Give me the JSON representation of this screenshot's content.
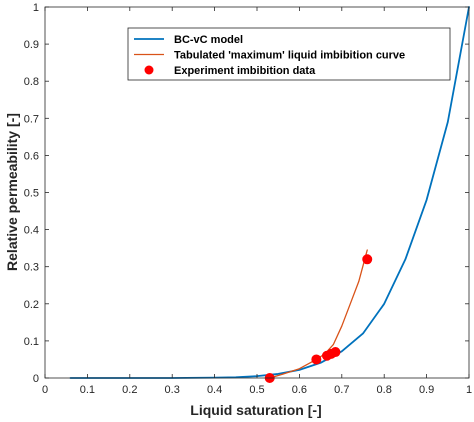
{
  "chart_data": {
    "type": "line",
    "xlabel": "Liquid saturation [-]",
    "ylabel": "Relative permeability [-]",
    "xlim": [
      0,
      1
    ],
    "ylim": [
      0,
      1
    ],
    "xticks": [
      0,
      0.1,
      0.2,
      0.3,
      0.4,
      0.5,
      0.6,
      0.7,
      0.8,
      0.9,
      1
    ],
    "yticks": [
      0,
      0.1,
      0.2,
      0.3,
      0.4,
      0.5,
      0.6,
      0.7,
      0.8,
      0.9,
      1
    ],
    "xtick_labels": [
      "0",
      "0.1",
      "0.2",
      "0.3",
      "0.4",
      "0.5",
      "0.6",
      "0.7",
      "0.8",
      "0.9",
      "1"
    ],
    "ytick_labels": [
      "0",
      "0.1",
      "0.2",
      "0.3",
      "0.4",
      "0.5",
      "0.6",
      "0.7",
      "0.8",
      "0.9",
      "1"
    ],
    "grid": false,
    "legend_position": "top-center",
    "series": [
      {
        "name": "BC-vC model",
        "kind": "line",
        "color": "#0072BD",
        "x": [
          0.06,
          0.1,
          0.2,
          0.3,
          0.4,
          0.45,
          0.5,
          0.55,
          0.6,
          0.65,
          0.7,
          0.75,
          0.8,
          0.85,
          0.9,
          0.95,
          1.0
        ],
        "y": [
          0.0,
          0.0,
          0.0,
          0.0,
          0.001,
          0.002,
          0.005,
          0.011,
          0.022,
          0.041,
          0.072,
          0.12,
          0.2,
          0.32,
          0.48,
          0.69,
          1.0
        ]
      },
      {
        "name": "Tabulated 'maximum' liquid imbibition curve",
        "kind": "line",
        "color": "#D95319",
        "x": [
          0.53,
          0.56,
          0.6,
          0.64,
          0.66,
          0.68,
          0.7,
          0.72,
          0.74,
          0.76
        ],
        "y": [
          0.0,
          0.01,
          0.025,
          0.05,
          0.065,
          0.09,
          0.14,
          0.2,
          0.26,
          0.345
        ]
      },
      {
        "name": "Experiment imbibition data",
        "kind": "scatter",
        "color": "#FF0000",
        "x": [
          0.53,
          0.64,
          0.665,
          0.675,
          0.685,
          0.76
        ],
        "y": [
          0.0,
          0.05,
          0.06,
          0.065,
          0.07,
          0.32
        ]
      }
    ]
  }
}
